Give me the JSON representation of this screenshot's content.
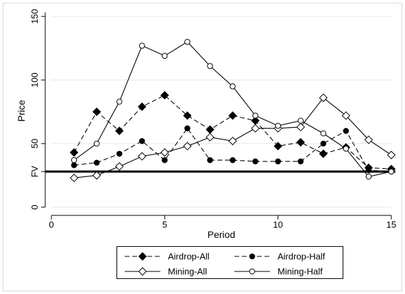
{
  "chart_data": {
    "type": "line",
    "xlabel": "Period",
    "ylabel": "Price",
    "xlim": [
      0,
      15
    ],
    "ylim": [
      0,
      150
    ],
    "xticks": [
      0,
      5,
      10,
      15
    ],
    "yticks": [
      0,
      50,
      100,
      150
    ],
    "x": [
      1,
      2,
      3,
      4,
      5,
      6,
      7,
      8,
      9,
      10,
      11,
      12,
      13,
      14,
      15
    ],
    "reference_line": {
      "label": "FV",
      "value": 28
    },
    "legend_position": "bottom",
    "series": [
      {
        "name": "Airdrop-All",
        "line": "dashed",
        "marker": "filled-diamond",
        "values": [
          43,
          75,
          60,
          79,
          88,
          72,
          61,
          72,
          68,
          48,
          51,
          42,
          47,
          31,
          30
        ]
      },
      {
        "name": "Airdrop-Half",
        "line": "dashed",
        "marker": "filled-circle",
        "values": [
          33,
          35,
          42,
          52,
          37,
          62,
          37,
          37,
          36,
          36,
          36,
          50,
          60,
          29,
          28
        ]
      },
      {
        "name": "Mining-All",
        "line": "solid",
        "marker": "hollow-diamond",
        "values": [
          23,
          25,
          32,
          40,
          43,
          48,
          55,
          52,
          62,
          62,
          63,
          86,
          72,
          53,
          41
        ]
      },
      {
        "name": "Mining-Half",
        "line": "solid",
        "marker": "hollow-circle",
        "values": [
          37,
          50,
          83,
          127,
          119,
          130,
          111,
          95,
          72,
          64,
          68,
          58,
          46,
          24,
          28
        ]
      }
    ]
  }
}
